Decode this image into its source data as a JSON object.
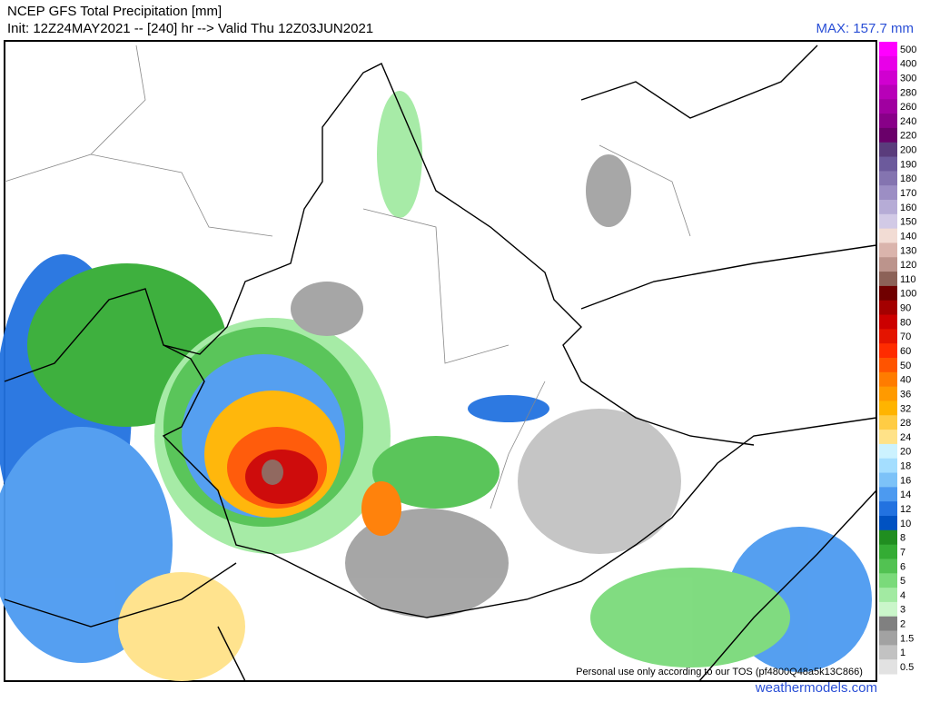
{
  "header": {
    "title": "NCEP GFS Total Precipitation [mm]",
    "subtitle": "Init: 12Z24MAY2021 -- [240] hr --> Valid Thu 12Z03JUN2021",
    "max": "MAX: 157.7 mm"
  },
  "colorbar": {
    "levels": [
      500,
      400,
      300,
      280,
      260,
      240,
      220,
      200,
      190,
      180,
      170,
      160,
      150,
      140,
      130,
      120,
      110,
      100,
      90,
      80,
      70,
      60,
      50,
      40,
      36,
      32,
      28,
      24,
      20,
      18,
      16,
      14,
      12,
      10,
      8,
      7,
      6,
      5,
      4,
      3,
      2,
      1.5,
      1,
      0.5
    ],
    "colors": [
      "#ff00ff",
      "#e800e8",
      "#d000d0",
      "#b800b8",
      "#a000a0",
      "#880088",
      "#6a006a",
      "#5a3c7c",
      "#6c5a9c",
      "#8474b0",
      "#9c8ec4",
      "#b6acd6",
      "#d2cae6",
      "#f2dcd4",
      "#dab4ac",
      "#bc948c",
      "#8c6258",
      "#700000",
      "#a40000",
      "#cc0000",
      "#e41400",
      "#ff2c00",
      "#ff5400",
      "#ff7c00",
      "#ff9a00",
      "#ffb400",
      "#ffcc44",
      "#ffe288",
      "#ccf2ff",
      "#a4deff",
      "#7cc2f8",
      "#4c9af0",
      "#2272e0",
      "#0052c2",
      "#208e20",
      "#34ac34",
      "#52c252",
      "#7ada7a",
      "#a2eaa2",
      "#caf6ca",
      "#808080",
      "#a2a2a2",
      "#c2c2c2",
      "#e2e2e2"
    ]
  },
  "footer": {
    "tos": "Personal use only according to our TOS (pf4800Q48a5k13C866)",
    "site": "weathermodels.com"
  }
}
